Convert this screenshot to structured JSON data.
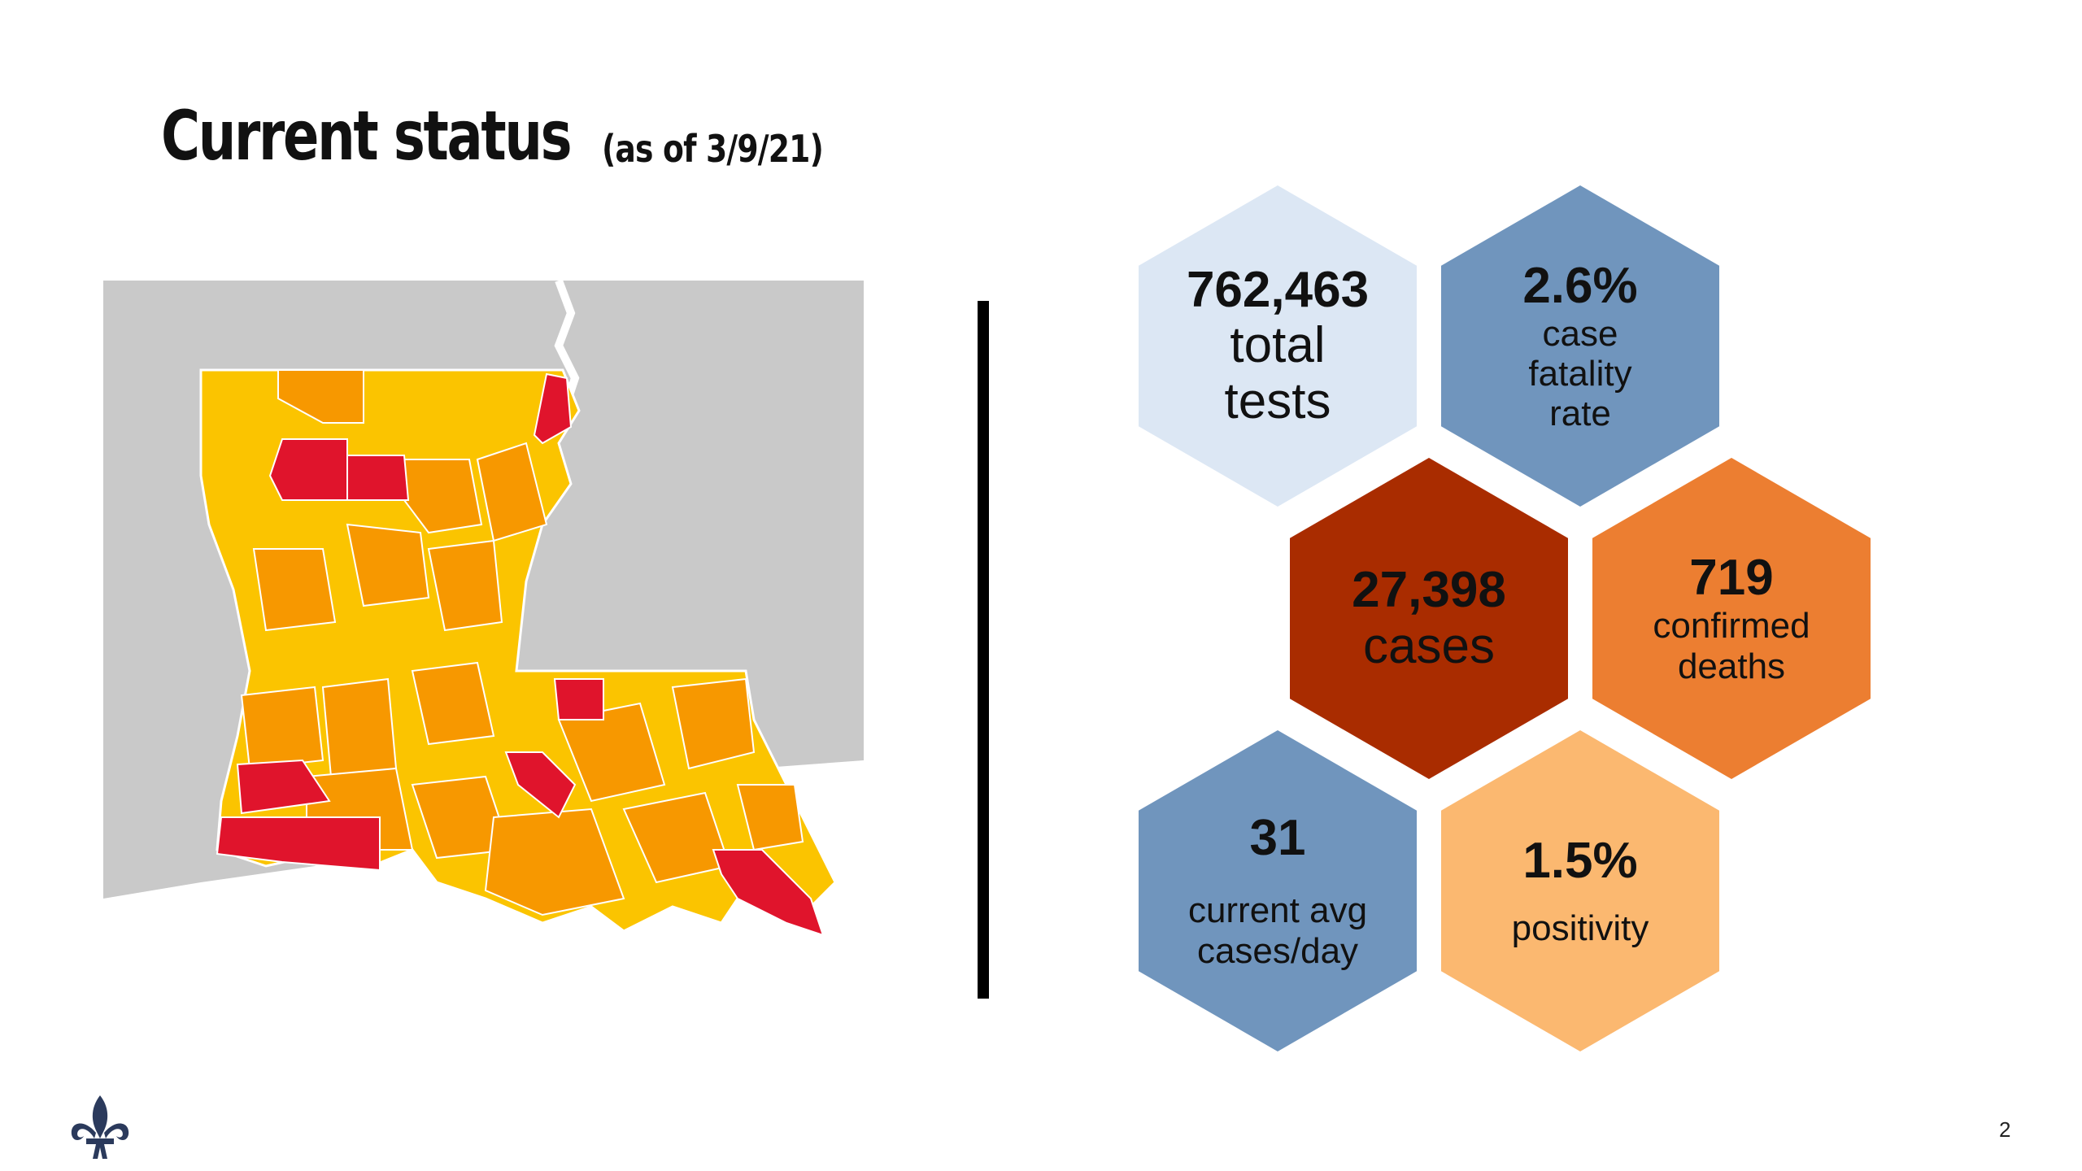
{
  "title": {
    "main": "Current status",
    "sub": "(as of 3/9/21)"
  },
  "stats": {
    "tests": {
      "value": "762,463",
      "label_line1": "total",
      "label_line2": "tests"
    },
    "cfr": {
      "value": "2.6%",
      "label_line1": "case",
      "label_line2": "fatality",
      "label_line3": "rate"
    },
    "cases": {
      "value": "27,398",
      "label": "cases"
    },
    "deaths": {
      "value": "719",
      "label_line1": "confirmed",
      "label_line2": "deaths"
    },
    "avg": {
      "value": "31",
      "label_line1": "current avg",
      "label_line2": "cases/day"
    },
    "positivity": {
      "value": "1.5%",
      "label": "positivity"
    }
  },
  "colors": {
    "light_blue": "#dce7f4",
    "steel_blue": "#7095bd",
    "dark_red": "#a92c00",
    "orange": "#ec7e31",
    "light_orange": "#fbb870",
    "map_yellow": "#fbc400",
    "map_orange": "#f79800",
    "map_red": "#e0142c",
    "map_gray": "#c9c9c9"
  },
  "page_number": "2",
  "logo_icon": "fleur-de-lis-icon"
}
